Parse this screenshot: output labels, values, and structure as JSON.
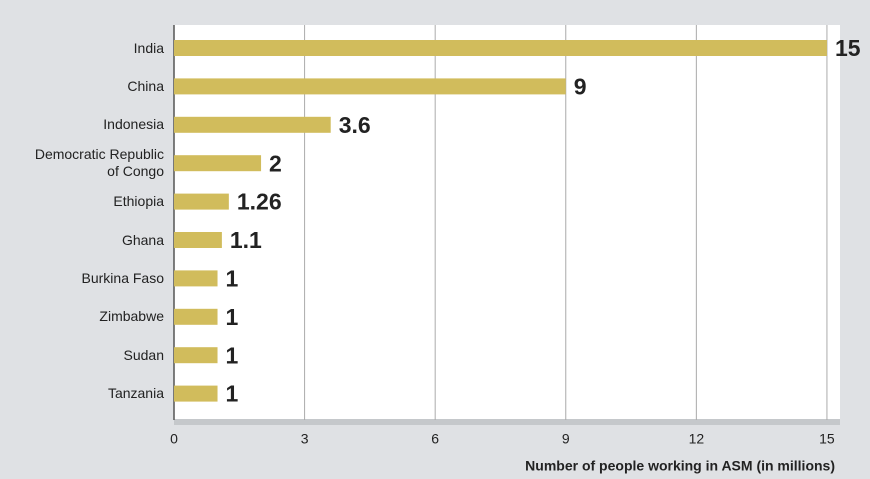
{
  "chart_data": {
    "type": "bar",
    "orientation": "horizontal",
    "categories": [
      "India",
      "China",
      "Indonesia",
      "Democratic Republic of Congo",
      "Ethiopia",
      "Ghana",
      "Burkina Faso",
      "Zimbabwe",
      "Sudan",
      "Tanzania"
    ],
    "values": [
      15,
      9,
      3.6,
      2,
      1.26,
      1.1,
      1,
      1,
      1,
      1
    ],
    "color": "#d1bc5c",
    "xlim": [
      0,
      15.3
    ],
    "xticks": [
      0,
      3,
      6,
      9,
      12,
      15
    ],
    "grid": true,
    "xlabel": "Number of people working in ASM (in millions)"
  }
}
